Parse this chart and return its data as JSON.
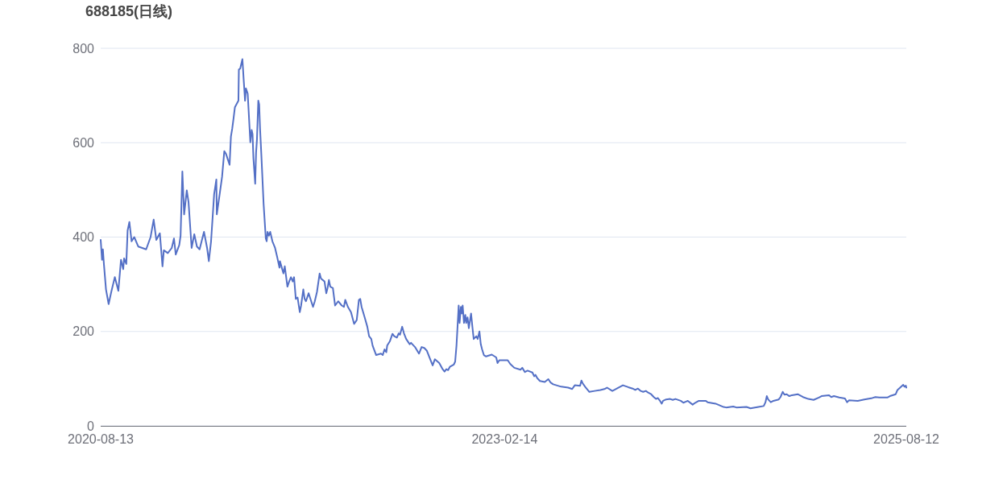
{
  "chart_data": {
    "type": "line",
    "title": "688185(日线)",
    "x": [
      "2020-08-13",
      "2020-08-16",
      "2020-08-18",
      "2020-08-20",
      "2020-08-25",
      "2020-08-31",
      "2020-09-06",
      "2020-09-14",
      "2020-09-22",
      "2020-09-28",
      "2020-10-03",
      "2020-10-05",
      "2020-10-10",
      "2020-10-13",
      "2020-10-17",
      "2020-10-22",
      "2020-10-28",
      "2020-11-06",
      "2020-11-15",
      "2020-11-24",
      "2020-12-04",
      "2020-12-11",
      "2020-12-17",
      "2020-12-25",
      "2020-12-31",
      "2021-01-03",
      "2021-01-12",
      "2021-01-21",
      "2021-01-26",
      "2021-01-30",
      "2021-02-07",
      "2021-02-10",
      "2021-02-14",
      "2021-02-18",
      "2021-02-24",
      "2021-02-28",
      "2021-03-07",
      "2021-03-13",
      "2021-03-19",
      "2021-03-25",
      "2021-04-04",
      "2021-04-11",
      "2021-04-15",
      "2021-04-20",
      "2021-04-27",
      "2021-05-02",
      "2021-05-03",
      "2021-05-10",
      "2021-05-15",
      "2021-05-20",
      "2021-05-24",
      "2021-06-01",
      "2021-06-04",
      "2021-06-07",
      "2021-06-10",
      "2021-06-13",
      "2021-06-21",
      "2021-06-22",
      "2021-06-25",
      "2021-06-30",
      "2021-07-03",
      "2021-07-04",
      "2021-07-06",
      "2021-07-08",
      "2021-07-12",
      "2021-07-14",
      "2021-07-18",
      "2021-07-21",
      "2021-07-23",
      "2021-07-25",
      "2021-07-29",
      "2021-07-31",
      "2021-08-02",
      "2021-08-05",
      "2021-08-07",
      "2021-08-09",
      "2021-08-12",
      "2021-08-17",
      "2021-08-22",
      "2021-08-24",
      "2021-08-26",
      "2021-08-29",
      "2021-09-01",
      "2021-09-06",
      "2021-09-12",
      "2021-09-17",
      "2021-09-22",
      "2021-09-23",
      "2021-10-01",
      "2021-10-04",
      "2021-10-10",
      "2021-10-14",
      "2021-10-18",
      "2021-10-22",
      "2021-10-25",
      "2021-10-29",
      "2021-11-02",
      "2021-11-07",
      "2021-11-10",
      "2021-11-15",
      "2021-11-18",
      "2021-11-21",
      "2021-11-27",
      "2021-12-07",
      "2021-12-11",
      "2021-12-16",
      "2021-12-22",
      "2021-12-25",
      "2022-01-02",
      "2022-01-06",
      "2022-01-09",
      "2022-01-12",
      "2022-01-15",
      "2022-01-21",
      "2022-01-26",
      "2022-02-02",
      "2022-02-10",
      "2022-02-15",
      "2022-02-18",
      "2022-02-24",
      "2022-03-03",
      "2022-03-10",
      "2022-03-16",
      "2022-03-21",
      "2022-03-24",
      "2022-03-27",
      "2022-04-03",
      "2022-04-09",
      "2022-04-13",
      "2022-04-18",
      "2022-04-21",
      "2022-04-29",
      "2022-05-10",
      "2022-05-14",
      "2022-05-18",
      "2022-05-22",
      "2022-05-24",
      "2022-05-30",
      "2022-06-05",
      "2022-06-09",
      "2022-06-15",
      "2022-06-19",
      "2022-06-22",
      "2022-06-27",
      "2022-07-01",
      "2022-07-06",
      "2022-07-14",
      "2022-07-17",
      "2022-07-26",
      "2022-08-04",
      "2022-08-10",
      "2022-08-16",
      "2022-08-22",
      "2022-08-27",
      "2022-09-04",
      "2022-09-09",
      "2022-09-19",
      "2022-09-26",
      "2022-10-01",
      "2022-10-05",
      "2022-10-09",
      "2022-10-13",
      "2022-10-22",
      "2022-10-25",
      "2022-10-28",
      "2022-10-31",
      "2022-11-02",
      "2022-11-04",
      "2022-11-07",
      "2022-11-09",
      "2022-11-11",
      "2022-11-14",
      "2022-11-17",
      "2022-11-19",
      "2022-11-22",
      "2022-11-25",
      "2022-11-30",
      "2022-12-03",
      "2022-12-06",
      "2022-12-12",
      "2022-12-15",
      "2022-12-19",
      "2022-12-22",
      "2022-12-25",
      "2022-12-29",
      "2023-01-03",
      "2023-01-16",
      "2023-01-26",
      "2023-01-29",
      "2023-02-02",
      "2023-02-15",
      "2023-02-21",
      "2023-02-27",
      "2023-03-08",
      "2023-03-22",
      "2023-03-26",
      "2023-04-01",
      "2023-04-07",
      "2023-04-18",
      "2023-04-22",
      "2023-04-25",
      "2023-04-29",
      "2023-05-05",
      "2023-05-16",
      "2023-05-24",
      "2023-05-29",
      "2023-06-04",
      "2023-06-22",
      "2023-07-08",
      "2023-07-17",
      "2023-07-23",
      "2023-08-04",
      "2023-08-07",
      "2023-08-10",
      "2023-08-16",
      "2023-08-25",
      "2023-09-06",
      "2023-09-19",
      "2023-09-28",
      "2023-10-04",
      "2023-10-16",
      "2023-10-28",
      "2023-11-09",
      "2023-11-21",
      "2023-12-01",
      "2023-12-07",
      "2023-12-13",
      "2023-12-19",
      "2023-12-25",
      "2023-12-31",
      "2024-01-06",
      "2024-01-12",
      "2024-01-18",
      "2024-01-23",
      "2024-01-27",
      "2024-02-01",
      "2024-02-05",
      "2024-02-08",
      "2024-02-15",
      "2024-02-24",
      "2024-03-01",
      "2024-03-07",
      "2024-03-19",
      "2024-03-25",
      "2024-03-30",
      "2024-04-04",
      "2024-04-15",
      "2024-04-21",
      "2024-04-29",
      "2024-05-15",
      "2024-05-19",
      "2024-06-06",
      "2024-06-24",
      "2024-06-30",
      "2024-07-16",
      "2024-07-23",
      "2024-08-15",
      "2024-08-24",
      "2024-09-11",
      "2024-09-23",
      "2024-09-27",
      "2024-09-30",
      "2024-10-03",
      "2024-10-09",
      "2024-10-15",
      "2024-10-27",
      "2024-10-31",
      "2024-11-05",
      "2024-11-09",
      "2024-11-14",
      "2024-11-20",
      "2024-11-26",
      "2024-12-09",
      "2024-12-21",
      "2025-01-02",
      "2025-01-14",
      "2025-01-26",
      "2025-02-01",
      "2025-02-18",
      "2025-02-23",
      "2025-03-01",
      "2025-03-13",
      "2025-03-26",
      "2025-03-31",
      "2025-04-04",
      "2025-04-24",
      "2025-05-09",
      "2025-05-27",
      "2025-06-03",
      "2025-06-12",
      "2025-06-30",
      "2025-07-06",
      "2025-07-19",
      "2025-07-23",
      "2025-07-28",
      "2025-08-05",
      "2025-08-08",
      "2025-08-11",
      "2025-08-12"
    ],
    "series": [
      {
        "color": "#5470c6",
        "values": [
          394,
          352,
          374,
          346,
          289,
          258,
          284,
          315,
          286,
          352,
          332,
          355,
          343,
          414,
          432,
          391,
          400,
          380,
          377,
          374,
          400,
          437,
          394,
          408,
          338,
          372,
          366,
          377,
          397,
          363,
          383,
          403,
          539,
          448,
          499,
          474,
          377,
          406,
          380,
          374,
          411,
          377,
          349,
          391,
          491,
          522,
          448,
          494,
          528,
          582,
          576,
          553,
          613,
          630,
          652,
          675,
          689,
          755,
          757,
          777,
          732,
          718,
          689,
          715,
          704,
          670,
          601,
          627,
          618,
          567,
          513,
          579,
          607,
          689,
          681,
          630,
          573,
          471,
          397,
          391,
          411,
          403,
          411,
          391,
          377,
          357,
          335,
          349,
          323,
          338,
          295,
          306,
          315,
          306,
          315,
          269,
          272,
          241,
          255,
          289,
          269,
          264,
          281,
          252,
          264,
          284,
          323,
          312,
          306,
          281,
          292,
          309,
          295,
          292,
          255,
          264,
          255,
          252,
          267,
          252,
          241,
          216,
          224,
          267,
          269,
          252,
          230,
          210,
          190,
          184,
          170,
          150,
          153,
          150,
          162,
          156,
          170,
          179,
          195,
          190,
          187,
          196,
          193,
          210,
          196,
          184,
          173,
          176,
          167,
          153,
          167,
          165,
          159,
          147,
          128,
          141,
          133,
          121,
          115,
          120,
          118,
          125,
          130,
          136,
          170,
          221,
          255,
          218,
          252,
          238,
          255,
          218,
          235,
          218,
          230,
          207,
          238,
          210,
          184,
          190,
          184,
          200,
          173,
          162,
          150,
          147,
          151,
          145,
          133,
          139,
          139,
          139,
          131,
          123,
          119,
          123,
          114,
          117,
          113,
          105,
          108,
          101,
          95,
          93,
          99,
          92,
          88,
          83,
          81,
          78,
          86,
          85,
          96,
          90,
          82,
          72,
          74,
          76,
          78,
          81,
          74,
          80,
          86,
          82,
          79,
          76,
          79,
          74,
          72,
          74,
          70,
          67,
          61,
          57,
          59,
          53,
          47,
          53,
          56,
          57,
          55,
          57,
          53,
          49,
          51,
          53,
          45,
          49,
          53,
          53,
          50,
          47,
          40,
          39,
          41,
          39,
          40,
          37,
          40,
          42,
          50,
          63,
          56,
          50,
          53,
          56,
          61,
          72,
          66,
          67,
          63,
          65,
          67,
          61,
          57,
          55,
          60,
          63,
          65,
          61,
          63,
          60,
          58,
          50,
          54,
          53,
          56,
          59,
          61,
          60,
          60,
          63,
          67,
          76,
          80,
          87,
          83,
          85,
          81
        ]
      }
    ],
    "xlim": [
      "2020-08-13",
      "2025-08-12"
    ],
    "xticks": [
      "2020-08-13",
      "2023-02-14",
      "2025-08-12"
    ],
    "ylim": [
      0,
      800
    ],
    "yticks": [
      0,
      200,
      400,
      600,
      800
    ],
    "grid": "y"
  }
}
